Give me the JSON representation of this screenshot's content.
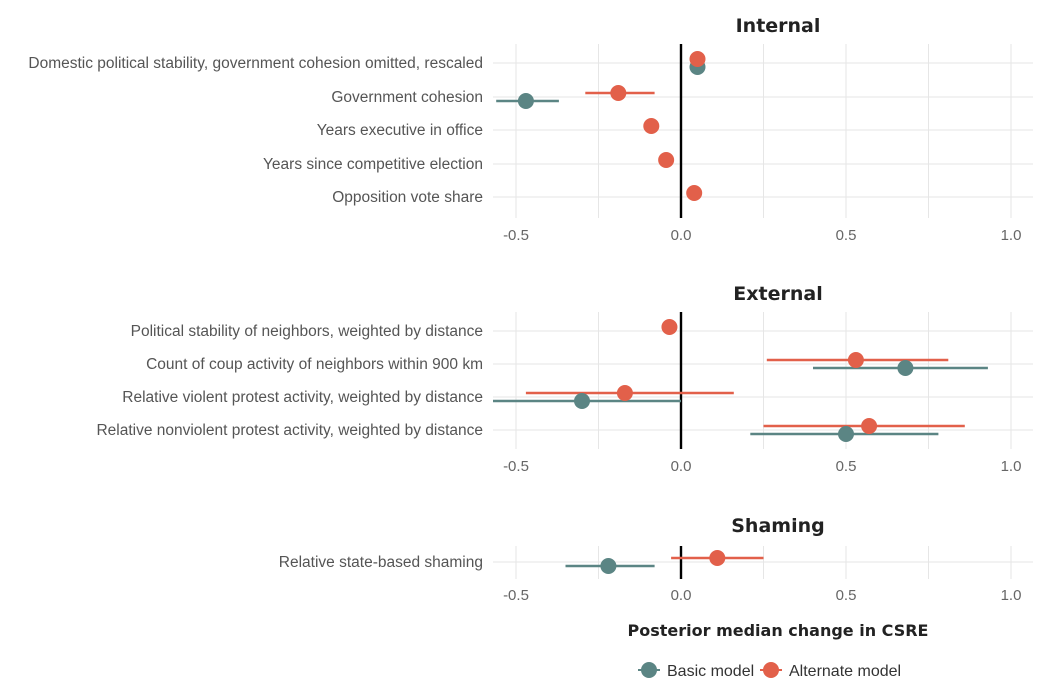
{
  "chart_data": [
    {
      "type": "scatter",
      "title": "Internal",
      "categories": [
        "Domestic political stability, government cohesion omitted, rescaled",
        "Government cohesion",
        "Years executive in office",
        "Years since competitive election",
        "Opposition vote share"
      ],
      "series": [
        {
          "name": "Basic model",
          "color": "#5b8584",
          "values": [
            0.05,
            -0.47,
            null,
            null,
            null
          ],
          "lower": [
            null,
            -0.56,
            null,
            null,
            null
          ],
          "upper": [
            null,
            -0.37,
            null,
            null,
            null
          ]
        },
        {
          "name": "Alternate model",
          "color": "#e2604a",
          "values": [
            0.05,
            -0.19,
            -0.09,
            -0.045,
            0.04
          ],
          "lower": [
            null,
            -0.29,
            null,
            null,
            null
          ],
          "upper": [
            null,
            -0.08,
            null,
            null,
            null
          ]
        }
      ],
      "xlim": [
        -0.57,
        1.05
      ],
      "xticks": [
        -0.5,
        0.0,
        0.5,
        1.0
      ],
      "xticklabels": [
        "-0.5",
        "0.0",
        "0.5",
        "1.0"
      ],
      "grid": true
    },
    {
      "type": "scatter",
      "title": "External",
      "categories": [
        "Political stability of neighbors, weighted by distance",
        "Count of coup activity of neighbors within 900 km",
        "Relative violent protest activity, weighted by distance",
        "Relative nonviolent protest activity, weighted by distance"
      ],
      "series": [
        {
          "name": "Basic model",
          "color": "#5b8584",
          "values": [
            null,
            0.68,
            -0.3,
            0.5
          ],
          "lower": [
            null,
            0.4,
            -0.57,
            0.21
          ],
          "upper": [
            null,
            0.93,
            0.0,
            0.78
          ]
        },
        {
          "name": "Alternate model",
          "color": "#e2604a",
          "values": [
            -0.035,
            0.53,
            -0.17,
            0.57
          ],
          "lower": [
            null,
            0.26,
            -0.47,
            0.25
          ],
          "upper": [
            null,
            0.81,
            0.16,
            0.86
          ]
        }
      ],
      "xlim": [
        -0.57,
        1.05
      ],
      "xticks": [
        -0.5,
        0.0,
        0.5,
        1.0
      ],
      "xticklabels": [
        "-0.5",
        "0.0",
        "0.5",
        "1.0"
      ],
      "grid": true
    },
    {
      "type": "scatter",
      "title": "Shaming",
      "categories": [
        "Relative state-based shaming"
      ],
      "series": [
        {
          "name": "Basic model",
          "color": "#5b8584",
          "values": [
            -0.22
          ],
          "lower": [
            -0.35
          ],
          "upper": [
            -0.08
          ]
        },
        {
          "name": "Alternate model",
          "color": "#e2604a",
          "values": [
            0.11
          ],
          "lower": [
            -0.03
          ],
          "upper": [
            0.25
          ]
        }
      ],
      "xlim": [
        -0.57,
        1.05
      ],
      "xticks": [
        -0.5,
        0.0,
        0.5,
        1.0
      ],
      "xticklabels": [
        "-0.5",
        "0.0",
        "0.5",
        "1.0"
      ],
      "xlabel": "Posterior median change in CSRE",
      "grid": true
    }
  ],
  "legend": {
    "placement": "bottom",
    "items": [
      {
        "label": "Basic model",
        "color": "#5b8584"
      },
      {
        "label": "Alternate model",
        "color": "#e2604a"
      }
    ]
  }
}
